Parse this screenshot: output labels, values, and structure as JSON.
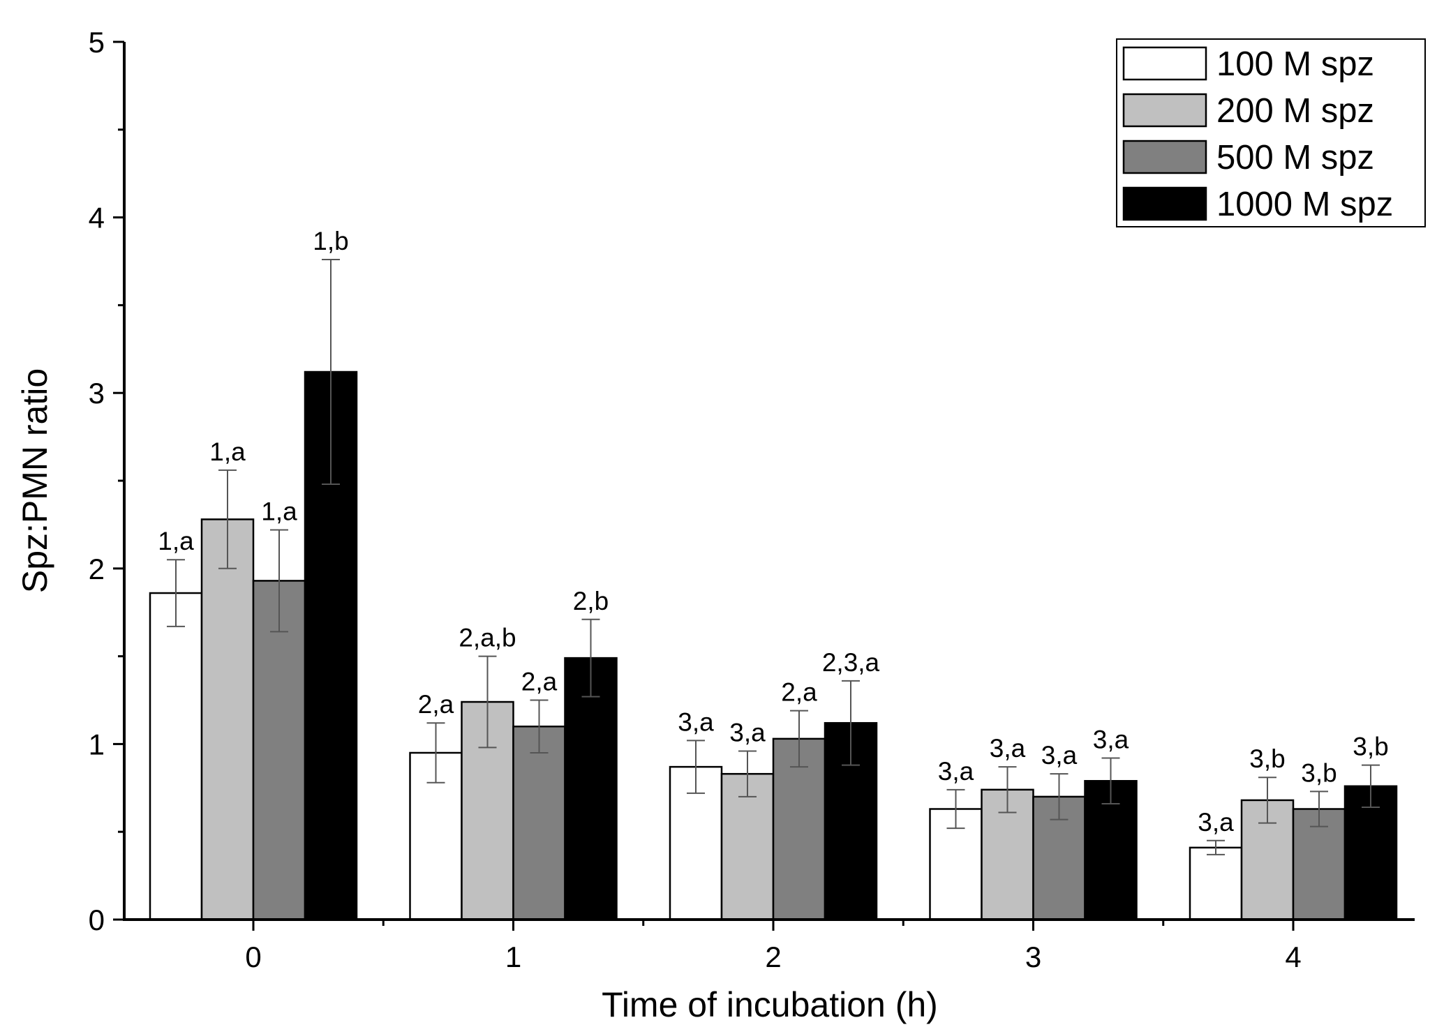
{
  "chart_data": {
    "type": "bar",
    "title": "",
    "xlabel": "Time of incubation (h)",
    "ylabel": "Spz:PMN ratio",
    "categories": [
      "0",
      "1",
      "2",
      "3",
      "4"
    ],
    "ylim": [
      0,
      5
    ],
    "yticks": [
      "0",
      "1",
      "2",
      "3",
      "4",
      "5"
    ],
    "legend_position": "top-right",
    "series": [
      {
        "name": "100 M spz",
        "color": "#ffffff",
        "values": [
          1.86,
          0.95,
          0.87,
          0.63,
          0.41
        ],
        "errors": [
          0.19,
          0.17,
          0.15,
          0.11,
          0.04
        ],
        "labels": [
          "1,a",
          "2,a",
          "3,a",
          "3,a",
          "3,a"
        ]
      },
      {
        "name": "200 M spz",
        "color": "#c0c0c0",
        "values": [
          2.28,
          1.24,
          0.83,
          0.74,
          0.68
        ],
        "errors": [
          0.28,
          0.26,
          0.13,
          0.13,
          0.13
        ],
        "labels": [
          "1,a",
          "2,a,b",
          "3,a",
          "3,a",
          "3,b"
        ]
      },
      {
        "name": "500 M spz",
        "color": "#808080",
        "values": [
          1.93,
          1.1,
          1.03,
          0.7,
          0.63
        ],
        "errors": [
          0.29,
          0.15,
          0.16,
          0.13,
          0.1
        ],
        "labels": [
          "1,a",
          "2,a",
          "2,a",
          "3,a",
          "3,b"
        ]
      },
      {
        "name": "1000 M spz",
        "color": "#000000",
        "values": [
          3.12,
          1.49,
          1.12,
          0.79,
          0.76
        ],
        "errors": [
          0.64,
          0.22,
          0.24,
          0.13,
          0.12
        ],
        "labels": [
          "1,b",
          "2,b",
          "2,3,a",
          "3,a",
          "3,b"
        ]
      }
    ]
  }
}
